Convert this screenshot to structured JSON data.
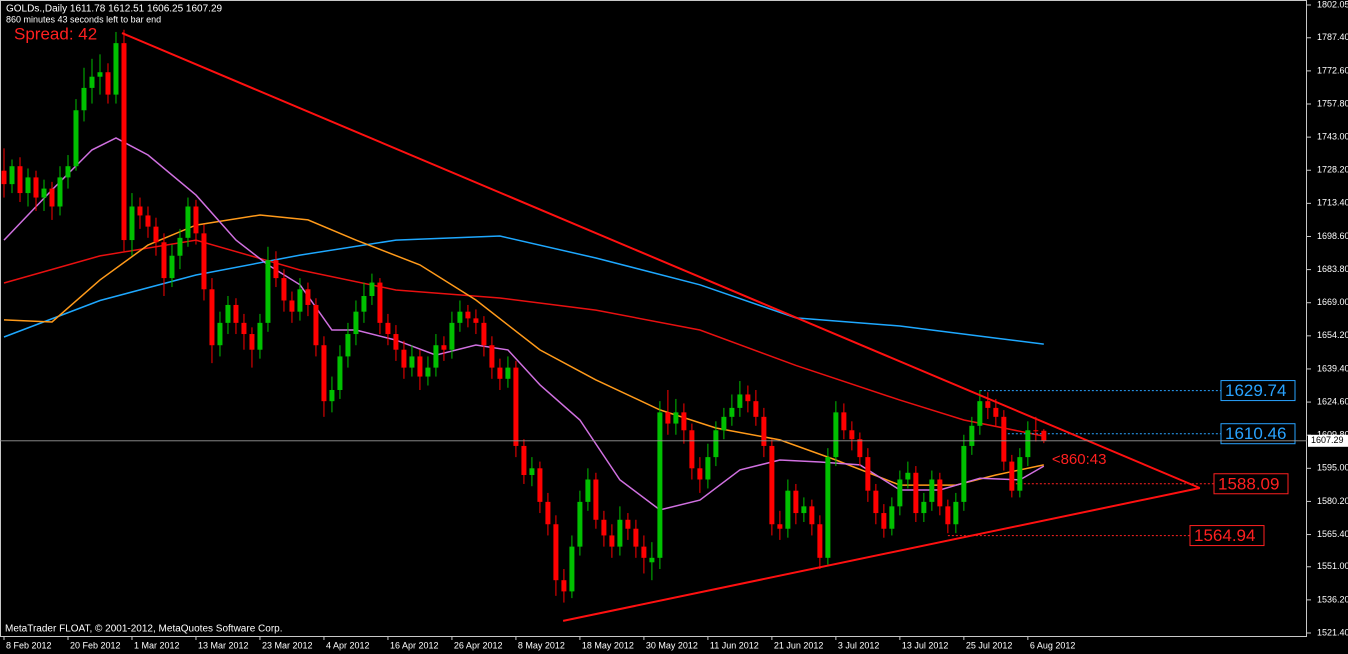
{
  "chart_data": {
    "type": "candlestick",
    "title": "GOLDs.,Daily  1611.78 1612.51 1606.25 1607.29",
    "subtitle": "860 minutes 43 seconds left to bar end",
    "spread": "Spread: 42",
    "countdown": "<860:43",
    "footer": "MetaTrader FLOAT, © 2001-2012, MetaQuotes Software Corp.",
    "up_color": "#00c000",
    "down_color": "#ff0000",
    "xlim": [
      -0.5,
      162.9
    ],
    "ylim": [
      1520.06,
      1804.28
    ],
    "yticks": [
      {
        "value": 1802.05,
        "label": "1802.05"
      },
      {
        "value": 1787.4,
        "label": "1787.40"
      },
      {
        "value": 1772.6,
        "label": "1772.60"
      },
      {
        "value": 1757.8,
        "label": "1757.80"
      },
      {
        "value": 1743,
        "label": "1743.00"
      },
      {
        "value": 1728.2,
        "label": "1728.20"
      },
      {
        "value": 1713.4,
        "label": "1713.40"
      },
      {
        "value": 1698.6,
        "label": "1698.60"
      },
      {
        "value": 1683.8,
        "label": "1683.80"
      },
      {
        "value": 1669,
        "label": "1669.00"
      },
      {
        "value": 1654.2,
        "label": "1654.20"
      },
      {
        "value": 1639.4,
        "label": "1639.40"
      },
      {
        "value": 1624.6,
        "label": "1624.60"
      },
      {
        "value": 1609.8,
        "label": "1609.80"
      },
      {
        "value": 1595,
        "label": "1595.00"
      },
      {
        "value": 1580.2,
        "label": "1580.20"
      },
      {
        "value": 1565.4,
        "label": "1565.40"
      },
      {
        "value": 1551,
        "label": "1551.00"
      },
      {
        "value": 1536.2,
        "label": "1536.20"
      },
      {
        "value": 1521.4,
        "label": "1521.40"
      }
    ],
    "xticks": [
      {
        "value": 0,
        "label": "8 Feb 2012"
      },
      {
        "value": 8,
        "label": "20 Feb 2012"
      },
      {
        "value": 16,
        "label": "1 Mar 2012"
      },
      {
        "value": 24,
        "label": "13 Mar 2012"
      },
      {
        "value": 32,
        "label": "23 Mar 2012"
      },
      {
        "value": 40,
        "label": "4 Apr 2012"
      },
      {
        "value": 48,
        "label": "16 Apr 2012"
      },
      {
        "value": 56,
        "label": "26 Apr 2012"
      },
      {
        "value": 64,
        "label": "8 May 2012"
      },
      {
        "value": 72,
        "label": "18 May 2012"
      },
      {
        "value": 80,
        "label": "30 May 2012"
      },
      {
        "value": 88,
        "label": "11 Jun 2012"
      },
      {
        "value": 96,
        "label": "21 Jun 2012"
      },
      {
        "value": 104,
        "label": "3 Jul 2012"
      },
      {
        "value": 112,
        "label": "13 Jul 2012"
      },
      {
        "value": 120,
        "label": "25 Jul 2012"
      },
      {
        "value": 128,
        "label": "6 Aug 2012"
      }
    ],
    "ohlc": [
      [
        1728,
        1738,
        1716,
        1722
      ],
      [
        1722,
        1733,
        1718,
        1730
      ],
      [
        1730,
        1734,
        1714,
        1718
      ],
      [
        1718,
        1729,
        1712,
        1725
      ],
      [
        1725,
        1728,
        1710,
        1716
      ],
      [
        1716,
        1724,
        1710,
        1720
      ],
      [
        1720,
        1723,
        1706,
        1712
      ],
      [
        1712,
        1730,
        1708,
        1725
      ],
      [
        1725,
        1735,
        1720,
        1730
      ],
      [
        1730,
        1760,
        1728,
        1755
      ],
      [
        1755,
        1774,
        1750,
        1765
      ],
      [
        1765,
        1778,
        1758,
        1770
      ],
      [
        1770,
        1780,
        1762,
        1772
      ],
      [
        1772,
        1776,
        1758,
        1762
      ],
      [
        1762,
        1790,
        1758,
        1785
      ],
      [
        1785,
        1791,
        1692,
        1697
      ],
      [
        1697,
        1718,
        1690,
        1712
      ],
      [
        1712,
        1716,
        1702,
        1708
      ],
      [
        1708,
        1712,
        1698,
        1703
      ],
      [
        1703,
        1707,
        1690,
        1696
      ],
      [
        1696,
        1700,
        1672,
        1680
      ],
      [
        1680,
        1695,
        1676,
        1690
      ],
      [
        1690,
        1702,
        1684,
        1698
      ],
      [
        1698,
        1716,
        1694,
        1712
      ],
      [
        1712,
        1715,
        1695,
        1700
      ],
      [
        1700,
        1704,
        1670,
        1675
      ],
      [
        1675,
        1680,
        1642,
        1650
      ],
      [
        1650,
        1665,
        1645,
        1660
      ],
      [
        1660,
        1672,
        1655,
        1668
      ],
      [
        1668,
        1671,
        1655,
        1660
      ],
      [
        1660,
        1664,
        1648,
        1655
      ],
      [
        1655,
        1658,
        1640,
        1648
      ],
      [
        1648,
        1664,
        1644,
        1660
      ],
      [
        1660,
        1694,
        1656,
        1688
      ],
      [
        1688,
        1692,
        1676,
        1680
      ],
      [
        1680,
        1684,
        1665,
        1670
      ],
      [
        1670,
        1674,
        1660,
        1665
      ],
      [
        1665,
        1680,
        1661,
        1675
      ],
      [
        1675,
        1678,
        1663,
        1668
      ],
      [
        1668,
        1671,
        1645,
        1650
      ],
      [
        1650,
        1654,
        1618,
        1625
      ],
      [
        1625,
        1636,
        1620,
        1630
      ],
      [
        1630,
        1650,
        1626,
        1645
      ],
      [
        1645,
        1660,
        1640,
        1655
      ],
      [
        1655,
        1670,
        1650,
        1665
      ],
      [
        1665,
        1678,
        1660,
        1672
      ],
      [
        1672,
        1682,
        1668,
        1678
      ],
      [
        1678,
        1680,
        1655,
        1660
      ],
      [
        1660,
        1664,
        1650,
        1655
      ],
      [
        1655,
        1659,
        1643,
        1648
      ],
      [
        1648,
        1652,
        1635,
        1640
      ],
      [
        1640,
        1650,
        1636,
        1645
      ],
      [
        1645,
        1648,
        1630,
        1636
      ],
      [
        1636,
        1645,
        1632,
        1640
      ],
      [
        1640,
        1655,
        1636,
        1650
      ],
      [
        1650,
        1654,
        1643,
        1648
      ],
      [
        1648,
        1665,
        1644,
        1660
      ],
      [
        1660,
        1670,
        1656,
        1665
      ],
      [
        1665,
        1668,
        1658,
        1662
      ],
      [
        1662,
        1666,
        1655,
        1660
      ],
      [
        1660,
        1663,
        1645,
        1650
      ],
      [
        1650,
        1654,
        1635,
        1640
      ],
      [
        1640,
        1644,
        1630,
        1635
      ],
      [
        1635,
        1645,
        1631,
        1640
      ],
      [
        1640,
        1643,
        1600,
        1605
      ],
      [
        1605,
        1608,
        1588,
        1592
      ],
      [
        1592,
        1600,
        1587,
        1595
      ],
      [
        1595,
        1598,
        1575,
        1580
      ],
      [
        1580,
        1584,
        1565,
        1570
      ],
      [
        1570,
        1574,
        1538,
        1545
      ],
      [
        1545,
        1550,
        1535,
        1540
      ],
      [
        1540,
        1565,
        1537,
        1560
      ],
      [
        1560,
        1585,
        1556,
        1580
      ],
      [
        1580,
        1595,
        1576,
        1590
      ],
      [
        1590,
        1593,
        1568,
        1572
      ],
      [
        1572,
        1576,
        1560,
        1565
      ],
      [
        1565,
        1570,
        1555,
        1560
      ],
      [
        1560,
        1578,
        1556,
        1572
      ],
      [
        1572,
        1575,
        1563,
        1568
      ],
      [
        1568,
        1572,
        1555,
        1560
      ],
      [
        1560,
        1565,
        1548,
        1555
      ],
      [
        1553,
        1562,
        1545,
        1555
      ],
      [
        1555,
        1625,
        1550,
        1620
      ],
      [
        1620,
        1630,
        1610,
        1615
      ],
      [
        1615,
        1626,
        1610,
        1620
      ],
      [
        1620,
        1624,
        1606,
        1612
      ],
      [
        1612,
        1615,
        1590,
        1595
      ],
      [
        1595,
        1600,
        1584,
        1590
      ],
      [
        1590,
        1606,
        1586,
        1600
      ],
      [
        1600,
        1616,
        1596,
        1612
      ],
      [
        1612,
        1622,
        1608,
        1618
      ],
      [
        1618,
        1628,
        1614,
        1622
      ],
      [
        1622,
        1634,
        1618,
        1628
      ],
      [
        1628,
        1632,
        1620,
        1625
      ],
      [
        1625,
        1630,
        1614,
        1618
      ],
      [
        1618,
        1622,
        1600,
        1605
      ],
      [
        1605,
        1608,
        1565,
        1570
      ],
      [
        1570,
        1576,
        1563,
        1568
      ],
      [
        1568,
        1590,
        1564,
        1585
      ],
      [
        1585,
        1588,
        1570,
        1575
      ],
      [
        1575,
        1582,
        1571,
        1578
      ],
      [
        1578,
        1581,
        1565,
        1570
      ],
      [
        1570,
        1574,
        1550,
        1555
      ],
      [
        1555,
        1604,
        1552,
        1600
      ],
      [
        1600,
        1625,
        1596,
        1620
      ],
      [
        1620,
        1624,
        1608,
        1612
      ],
      [
        1612,
        1616,
        1603,
        1608
      ],
      [
        1608,
        1611,
        1596,
        1600
      ],
      [
        1600,
        1604,
        1580,
        1585
      ],
      [
        1585,
        1588,
        1570,
        1575
      ],
      [
        1575,
        1579,
        1564,
        1568
      ],
      [
        1568,
        1582,
        1565,
        1578
      ],
      [
        1578,
        1594,
        1574,
        1590
      ],
      [
        1590,
        1598,
        1586,
        1593
      ],
      [
        1593,
        1596,
        1571,
        1575
      ],
      [
        1575,
        1584,
        1571,
        1580
      ],
      [
        1580,
        1594,
        1576,
        1590
      ],
      [
        1590,
        1593,
        1574,
        1578
      ],
      [
        1578,
        1581,
        1566,
        1570
      ],
      [
        1570,
        1584,
        1566,
        1580
      ],
      [
        1580,
        1610,
        1576,
        1605
      ],
      [
        1605,
        1618,
        1601,
        1614
      ],
      [
        1614,
        1630,
        1610,
        1625
      ],
      [
        1625,
        1629,
        1617,
        1622
      ],
      [
        1622,
        1626,
        1614,
        1618
      ],
      [
        1618,
        1621,
        1594,
        1598
      ],
      [
        1598,
        1601,
        1582,
        1585
      ],
      [
        1585,
        1604,
        1582,
        1600
      ],
      [
        1600,
        1616,
        1596,
        1612
      ],
      [
        1612,
        1618,
        1607,
        1611.78
      ],
      [
        1611.78,
        1612.51,
        1606.25,
        1607.29
      ]
    ],
    "moving_averages": [
      {
        "color": "#1ea8ff",
        "x": [
          0,
          12,
          24,
          37,
          49,
          62,
          74,
          87,
          99,
          112,
          124,
          130
        ],
        "values": [
          1653.7,
          1670,
          1681.4,
          1690.3,
          1697,
          1698.8,
          1689,
          1677,
          1662.2,
          1658.6,
          1653.2,
          1650.5
        ]
      },
      {
        "color": "#e81010",
        "x": [
          0,
          12,
          24,
          37,
          49,
          62,
          74,
          87,
          99,
          112,
          120,
          130
        ],
        "values": [
          1677.8,
          1689.9,
          1697,
          1683.6,
          1674.7,
          1671.1,
          1665.7,
          1656.8,
          1641,
          1625.5,
          1616.6,
          1609.4
        ]
      },
      {
        "color": "#ff9a1a",
        "x": [
          0,
          6,
          12,
          18,
          24,
          32,
          38,
          44,
          52,
          59,
          67,
          74,
          82,
          89,
          97,
          104,
          112,
          119,
          124,
          130
        ],
        "values": [
          1661.3,
          1660.4,
          1679.2,
          1694.8,
          1703.7,
          1708.2,
          1706,
          1697,
          1685.9,
          1670.2,
          1647.9,
          1634.5,
          1621.1,
          1613,
          1607.7,
          1598.7,
          1587.5,
          1587.5,
          1592,
          1596.5
        ]
      },
      {
        "color": "#d070e0",
        "x": [
          0,
          6,
          11,
          14,
          18,
          24,
          29,
          33,
          37,
          41,
          44,
          49,
          54,
          59,
          63,
          67,
          72,
          77,
          82,
          87,
          92,
          97,
          102,
          107,
          112,
          117,
          122,
          127,
          130
        ],
        "values": [
          1697,
          1719.4,
          1737.3,
          1742.6,
          1735,
          1717.1,
          1697,
          1685.9,
          1677,
          1656.8,
          1656.8,
          1652.3,
          1645.6,
          1650.1,
          1647.9,
          1632.3,
          1616.6,
          1589.8,
          1576.4,
          1580.8,
          1594.3,
          1598.7,
          1597.8,
          1596.5,
          1585.3,
          1585.3,
          1590.6,
          1589.8,
          1596
        ]
      }
    ],
    "trendlines": [
      {
        "color": "#ff1010",
        "x": [
          14.75,
          149.5
        ],
        "values": [
          1789.5,
          1586.2
        ]
      },
      {
        "color": "#ff1010",
        "x": [
          69.9,
          149.5
        ],
        "values": [
          1526.8,
          1586.2
        ]
      }
    ],
    "levels": [
      {
        "value": 1629.74,
        "start": 122,
        "color": "#29a3ff"
      },
      {
        "value": 1610.46,
        "start": 125,
        "color": "#29a3ff"
      },
      {
        "value": 1588.09,
        "start": 126,
        "color": "#ff2020"
      },
      {
        "value": 1564.94,
        "start": 118,
        "color": "#ff2020"
      }
    ]
  }
}
